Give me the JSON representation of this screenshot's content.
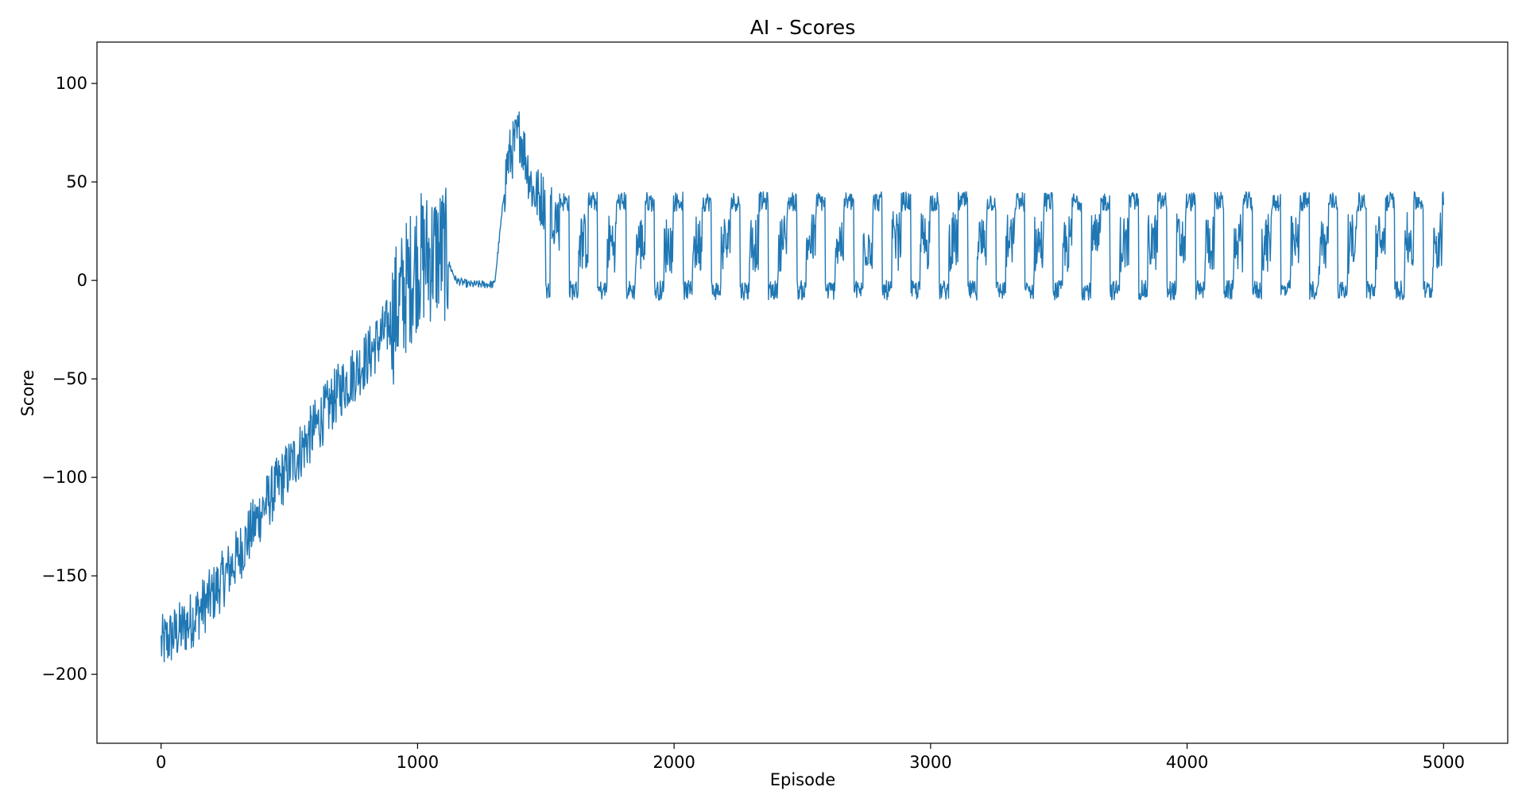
{
  "chart_data": {
    "type": "line",
    "title": "AI - Scores",
    "xlabel": "Episode",
    "ylabel": "Score",
    "xlim": [
      -250,
      5250
    ],
    "ylim": [
      -235,
      121
    ],
    "x_ticks": [
      0,
      1000,
      2000,
      3000,
      4000,
      5000
    ],
    "x_tick_labels": [
      "0",
      "1000",
      "2000",
      "3000",
      "4000",
      "5000"
    ],
    "y_ticks": [
      -200,
      -150,
      -100,
      -50,
      0,
      50,
      100
    ],
    "y_tick_labels": [
      "−200",
      "−150",
      "−100",
      "−50",
      "0",
      "50",
      "100"
    ],
    "grid": false,
    "legend": "none",
    "series": [
      {
        "color": "#1f77b4",
        "points": [
          [
            0,
            -185
          ],
          [
            100,
            -175
          ],
          [
            200,
            -160
          ],
          [
            300,
            -140
          ],
          [
            400,
            -115
          ],
          [
            500,
            -95
          ],
          [
            600,
            -75
          ],
          [
            700,
            -55
          ],
          [
            800,
            -40
          ],
          [
            900,
            -20
          ],
          [
            950,
            -5
          ],
          [
            1000,
            10
          ],
          [
            1100,
            15
          ],
          [
            1150,
            0
          ],
          [
            1200,
            -2
          ],
          [
            1300,
            -2
          ],
          [
            1350,
            60
          ],
          [
            1400,
            75
          ],
          [
            1450,
            45
          ],
          [
            1500,
            40
          ],
          [
            1600,
            20
          ],
          [
            2000,
            18
          ],
          [
            2500,
            20
          ],
          [
            3000,
            20
          ],
          [
            3500,
            18
          ],
          [
            4000,
            20
          ],
          [
            4500,
            18
          ],
          [
            5000,
            20
          ]
        ]
      }
    ]
  }
}
